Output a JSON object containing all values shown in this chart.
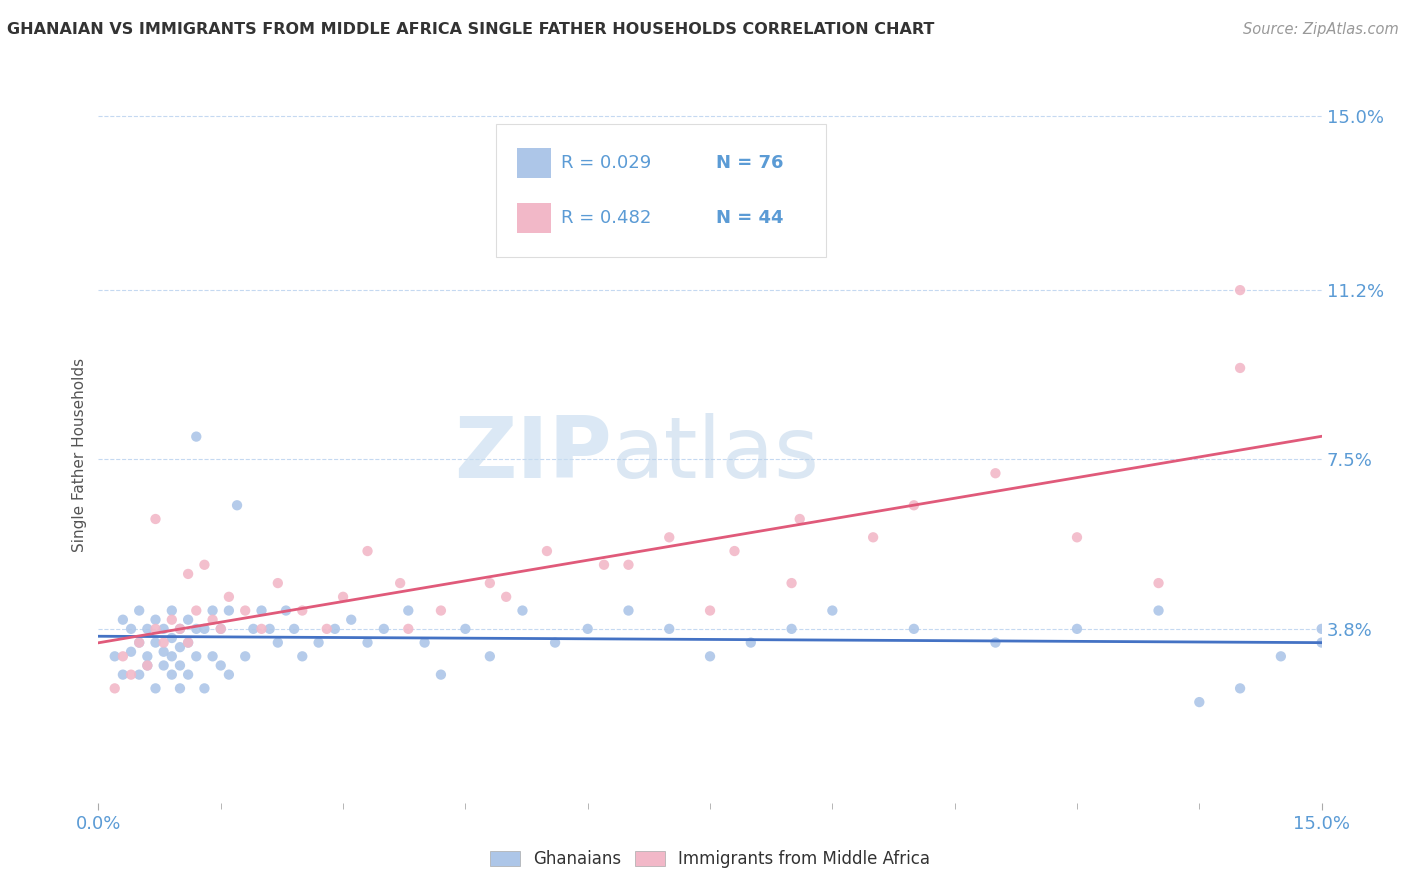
{
  "title": "GHANAIAN VS IMMIGRANTS FROM MIDDLE AFRICA SINGLE FATHER HOUSEHOLDS CORRELATION CHART",
  "source_text": "Source: ZipAtlas.com",
  "ylabel": "Single Father Households",
  "xmin": 0.0,
  "xmax": 0.15,
  "ymin": 0.0,
  "ymax": 0.15,
  "yticks": [
    0.038,
    0.075,
    0.112,
    0.15
  ],
  "ytick_labels": [
    "3.8%",
    "7.5%",
    "11.2%",
    "15.0%"
  ],
  "watermark_zip": "ZIP",
  "watermark_atlas": "atlas",
  "series": [
    {
      "name": "Ghanaians",
      "R": 0.029,
      "N": 76,
      "color": "#adc6e8",
      "line_color": "#4472c4",
      "x": [
        0.002,
        0.003,
        0.003,
        0.004,
        0.004,
        0.005,
        0.005,
        0.005,
        0.006,
        0.006,
        0.006,
        0.007,
        0.007,
        0.007,
        0.008,
        0.008,
        0.008,
        0.009,
        0.009,
        0.009,
        0.009,
        0.01,
        0.01,
        0.01,
        0.01,
        0.011,
        0.011,
        0.011,
        0.012,
        0.012,
        0.012,
        0.013,
        0.013,
        0.014,
        0.014,
        0.015,
        0.015,
        0.016,
        0.016,
        0.017,
        0.018,
        0.019,
        0.02,
        0.021,
        0.022,
        0.023,
        0.024,
        0.025,
        0.027,
        0.029,
        0.031,
        0.033,
        0.035,
        0.038,
        0.04,
        0.042,
        0.045,
        0.048,
        0.052,
        0.056,
        0.06,
        0.065,
        0.07,
        0.075,
        0.08,
        0.085,
        0.09,
        0.1,
        0.11,
        0.12,
        0.13,
        0.135,
        0.14,
        0.145,
        0.15,
        0.15
      ],
      "y": [
        0.032,
        0.04,
        0.028,
        0.038,
        0.033,
        0.035,
        0.028,
        0.042,
        0.032,
        0.03,
        0.038,
        0.025,
        0.035,
        0.04,
        0.03,
        0.038,
        0.033,
        0.028,
        0.036,
        0.032,
        0.042,
        0.025,
        0.03,
        0.038,
        0.034,
        0.028,
        0.035,
        0.04,
        0.032,
        0.038,
        0.08,
        0.025,
        0.038,
        0.032,
        0.042,
        0.03,
        0.038,
        0.028,
        0.042,
        0.065,
        0.032,
        0.038,
        0.042,
        0.038,
        0.035,
        0.042,
        0.038,
        0.032,
        0.035,
        0.038,
        0.04,
        0.035,
        0.038,
        0.042,
        0.035,
        0.028,
        0.038,
        0.032,
        0.042,
        0.035,
        0.038,
        0.042,
        0.038,
        0.032,
        0.035,
        0.038,
        0.042,
        0.038,
        0.035,
        0.038,
        0.042,
        0.022,
        0.025,
        0.032,
        0.038,
        0.035
      ]
    },
    {
      "name": "Immigrants from Middle Africa",
      "R": 0.482,
      "N": 44,
      "color": "#f2b8c8",
      "line_color": "#e05a7a",
      "x": [
        0.002,
        0.003,
        0.004,
        0.005,
        0.006,
        0.007,
        0.007,
        0.008,
        0.009,
        0.01,
        0.011,
        0.011,
        0.012,
        0.013,
        0.014,
        0.015,
        0.016,
        0.018,
        0.02,
        0.022,
        0.025,
        0.028,
        0.03,
        0.033,
        0.037,
        0.042,
        0.048,
        0.055,
        0.062,
        0.07,
        0.078,
        0.086,
        0.095,
        0.1,
        0.11,
        0.12,
        0.13,
        0.14,
        0.14,
        0.038,
        0.05,
        0.065,
        0.075,
        0.085
      ],
      "y": [
        0.025,
        0.032,
        0.028,
        0.035,
        0.03,
        0.038,
        0.062,
        0.035,
        0.04,
        0.038,
        0.035,
        0.05,
        0.042,
        0.052,
        0.04,
        0.038,
        0.045,
        0.042,
        0.038,
        0.048,
        0.042,
        0.038,
        0.045,
        0.055,
        0.048,
        0.042,
        0.048,
        0.055,
        0.052,
        0.058,
        0.055,
        0.062,
        0.058,
        0.065,
        0.072,
        0.058,
        0.048,
        0.095,
        0.112,
        0.038,
        0.045,
        0.052,
        0.042,
        0.048
      ]
    }
  ],
  "title_color": "#333333",
  "axis_color": "#5b9bd5",
  "grid_color": "#c5d9f1",
  "legend_text_color": "#5b9bd5",
  "legend_N_color": "#5b9bd5",
  "background_color": "#ffffff"
}
